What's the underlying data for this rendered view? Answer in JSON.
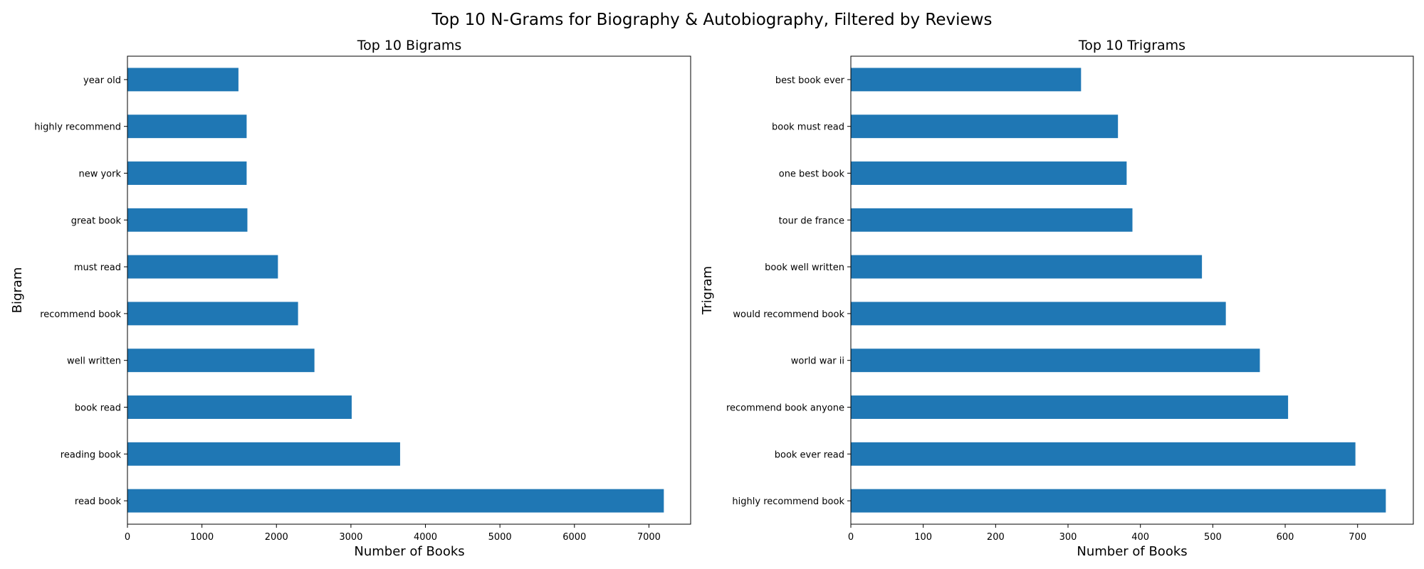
{
  "figure": {
    "title": "Top 10 N-Grams for Biography & Autobiography, Filtered by Reviews"
  },
  "colors": {
    "bar": "#1f77b4",
    "axis": "#000000"
  },
  "chart_data": [
    {
      "type": "bar",
      "orientation": "horizontal",
      "title": "Top 10 Bigrams",
      "xlabel": "Number of Books",
      "ylabel": "Bigram",
      "xlim": [
        0,
        7560
      ],
      "xticks": [
        0,
        1000,
        2000,
        3000,
        4000,
        5000,
        6000,
        7000
      ],
      "categories": [
        "read book",
        "reading book",
        "book read",
        "well written",
        "recommend book",
        "must read",
        "great book",
        "new york",
        "highly recommend",
        "year old"
      ],
      "values": [
        7200,
        3660,
        3010,
        2510,
        2290,
        2020,
        1610,
        1600,
        1600,
        1490
      ],
      "grid": false,
      "legend": "none"
    },
    {
      "type": "bar",
      "orientation": "horizontal",
      "title": "Top 10 Trigrams",
      "xlabel": "Number of Books",
      "ylabel": "Trigram",
      "xlim": [
        0,
        777
      ],
      "xticks": [
        0,
        100,
        200,
        300,
        400,
        500,
        600,
        700
      ],
      "categories": [
        "highly recommend book",
        "book ever read",
        "recommend book anyone",
        "world war ii",
        "would recommend book",
        "book well written",
        "tour de france",
        "one best book",
        "book must read",
        "best book ever"
      ],
      "values": [
        739,
        697,
        604,
        565,
        518,
        485,
        389,
        381,
        369,
        318
      ],
      "grid": false,
      "legend": "none"
    }
  ]
}
